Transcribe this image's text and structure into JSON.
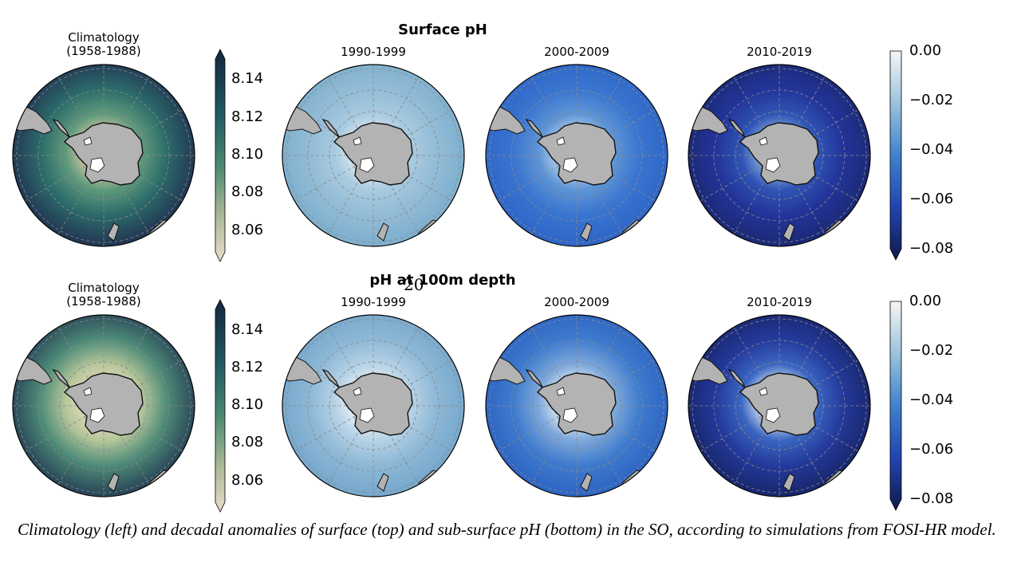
{
  "slide_number": "20",
  "caption": "Climatology (left) and decadal anomalies of surface (top) and sub-surface pH (bottom) in the SO, according to simulations from FOSI-HR model.",
  "rows": [
    {
      "title": "Surface pH",
      "panels": [
        {
          "title_line1": "Climatology",
          "title_line2": "(1958-1988)",
          "palette": "climatology"
        },
        {
          "title_line1": "1990-1999",
          "title_line2": "",
          "palette": "anom1"
        },
        {
          "title_line1": "2000-2009",
          "title_line2": "",
          "palette": "anom2"
        },
        {
          "title_line1": "2010-2019",
          "title_line2": "",
          "palette": "anom3"
        }
      ],
      "climatology_colorbar": {
        "ticks": [
          "8.14",
          "8.12",
          "8.10",
          "8.08",
          "8.06"
        ]
      },
      "anomaly_colorbar": {
        "ticks": [
          "0.00",
          "−0.02",
          "−0.04",
          "−0.06",
          "−0.08"
        ]
      }
    },
    {
      "title": "pH at 100m depth",
      "panels": [
        {
          "title_line1": "Climatology",
          "title_line2": "(1958-1988)",
          "palette": "climatology2"
        },
        {
          "title_line1": "1990-1999",
          "title_line2": "",
          "palette": "anom1b"
        },
        {
          "title_line1": "2000-2009",
          "title_line2": "",
          "palette": "anom2b"
        },
        {
          "title_line1": "2010-2019",
          "title_line2": "",
          "palette": "anom3b"
        }
      ],
      "climatology_colorbar": {
        "ticks": [
          "8.14",
          "8.12",
          "8.10",
          "8.08",
          "8.06"
        ]
      },
      "anomaly_colorbar": {
        "ticks": [
          "0.00",
          "−0.02",
          "−0.04",
          "−0.06",
          "−0.08"
        ]
      }
    }
  ],
  "palettes": {
    "climatology": {
      "outer": "#223a55",
      "mid": "#2c6b6a",
      "ring": "#5f9a7c",
      "inner": "#d8c9a5"
    },
    "climatology2": {
      "outer": "#2b4a5a",
      "mid": "#4e8c78",
      "ring": "#b7c79a",
      "inner": "#e6d8bf"
    },
    "anom1": {
      "outer": "#7fb0cf",
      "mid": "#93bcd6",
      "ring": "#a9cbe0",
      "inner": "#dde9f0"
    },
    "anom1b": {
      "outer": "#78a9cd",
      "mid": "#8db8d6",
      "ring": "#b7d3e6",
      "inner": "#eef3f6"
    },
    "anom2": {
      "outer": "#2f67c8",
      "mid": "#3a75d0",
      "ring": "#5e95d6",
      "inner": "#bcd4ea"
    },
    "anom2b": {
      "outer": "#2e66c4",
      "mid": "#3f7bcd",
      "ring": "#7fa9db",
      "inner": "#e2ecf5"
    },
    "anom3": {
      "outer": "#1c2a78",
      "mid": "#23349a",
      "ring": "#2f55b5",
      "inner": "#89aee0"
    },
    "anom3b": {
      "outer": "#1a2870",
      "mid": "#243a9c",
      "ring": "#3a66c2",
      "inner": "#d9e6f4"
    }
  },
  "colors": {
    "land": "#b3b3b3",
    "coast": "#111111",
    "graticule": "#8a8a8a"
  }
}
